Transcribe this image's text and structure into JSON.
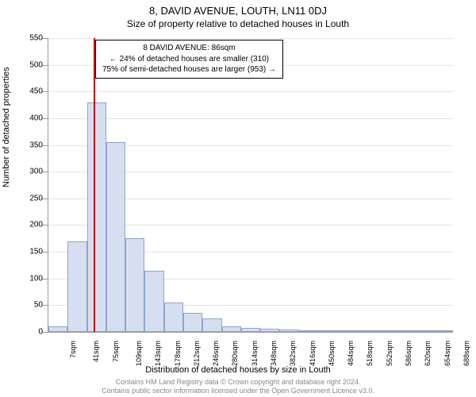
{
  "title": "8, DAVID AVENUE, LOUTH, LN11 0DJ",
  "subtitle": "Size of property relative to detached houses in Louth",
  "chart": {
    "type": "histogram",
    "y_axis": {
      "title": "Number of detached properties",
      "min": 0,
      "max": 550,
      "tick_step": 50,
      "ticks": [
        0,
        50,
        100,
        150,
        200,
        250,
        300,
        350,
        400,
        450,
        500,
        550
      ]
    },
    "x_axis": {
      "title": "Distribution of detached houses by size in Louth",
      "unit": "sqm",
      "labels": [
        "7sqm",
        "41sqm",
        "75sqm",
        "109sqm",
        "143sqm",
        "178sqm",
        "212sqm",
        "246sqm",
        "280sqm",
        "314sqm",
        "348sqm",
        "382sqm",
        "416sqm",
        "450sqm",
        "484sqm",
        "518sqm",
        "552sqm",
        "586sqm",
        "620sqm",
        "654sqm",
        "688sqm"
      ]
    },
    "bars": [
      10,
      170,
      430,
      355,
      175,
      115,
      55,
      35,
      25,
      11,
      8,
      6,
      4,
      3,
      3,
      0,
      2,
      0,
      0,
      0,
      2
    ],
    "bar_fill": "#d6dff0",
    "bar_stroke": "#8fa4cc",
    "background_color": "#ffffff",
    "grid_color": "#e5e5e5",
    "marker": {
      "value_sqm": 86,
      "x_min": 7,
      "x_max": 720,
      "color": "#cc0000"
    }
  },
  "annotation": {
    "line1": "8 DAVID AVENUE: 86sqm",
    "line2": "← 24% of detached houses are smaller (310)",
    "line3": "75% of semi-detached houses are larger (953) →"
  },
  "footer": {
    "line1": "Contains HM Land Registry data © Crown copyright and database right 2024.",
    "line2": "Contains public sector information licensed under the Open Government Licence v3.0."
  }
}
